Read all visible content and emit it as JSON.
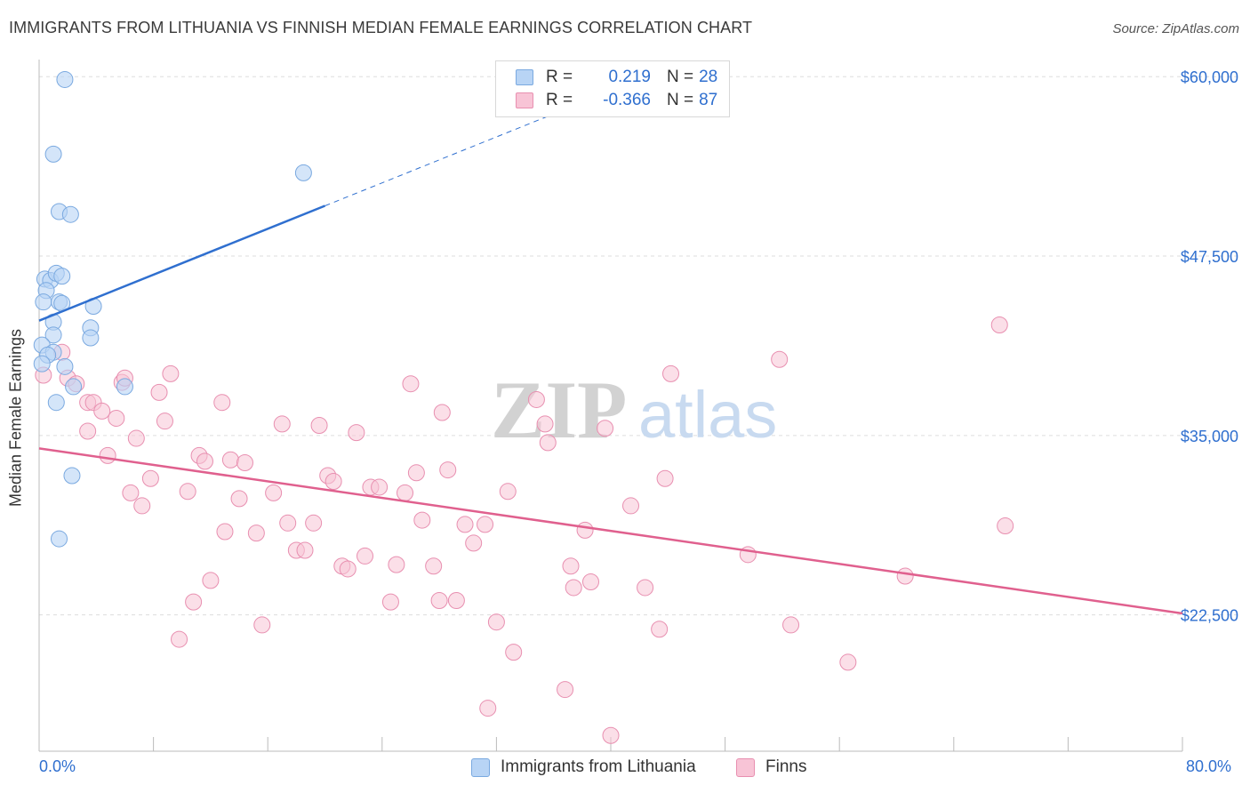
{
  "title": "IMMIGRANTS FROM LITHUANIA VS FINNISH MEDIAN FEMALE EARNINGS CORRELATION CHART",
  "source": "Source: ZipAtlas.com",
  "watermark": {
    "zip": "ZIP",
    "atlas": "atlas"
  },
  "legend": {
    "series1": {
      "r_label": "R =",
      "r_value": "0.219",
      "n_label": "N =",
      "n_value": "28"
    },
    "series2": {
      "r_label": "R =",
      "r_value": "-0.366",
      "n_label": "N =",
      "n_value": "87"
    }
  },
  "x_axis": {
    "min_label": "0.0%",
    "max_label": "80.0%"
  },
  "y_axis_title": "Median Female Earnings",
  "colors": {
    "blue_fill": "#b8d4f5",
    "blue_stroke": "#7aa9e0",
    "blue_line": "#2f6fcf",
    "pink_fill": "#f8c4d6",
    "pink_stroke": "#e88fb0",
    "pink_line": "#e0608e",
    "tick_label": "#2f6fcf",
    "grid": "#dddddd"
  },
  "chart_data": {
    "type": "scatter",
    "title": "IMMIGRANTS FROM LITHUANIA VS FINNISH MEDIAN FEMALE EARNINGS CORRELATION CHART",
    "xlabel": "",
    "ylabel": "Median Female Earnings",
    "xlim": [
      0,
      80
    ],
    "ylim": [
      13000,
      61500
    ],
    "y_ticks": [
      22500,
      35000,
      47500,
      60000
    ],
    "y_tick_labels": [
      "$22,500",
      "$35,000",
      "$47,500",
      "$60,000"
    ],
    "x_tick_labels": [
      "0.0%",
      "80.0%"
    ],
    "grid": true,
    "legend_position": "top-center",
    "series": [
      {
        "name": "Immigrants from Lithuania",
        "r": 0.219,
        "n": 28,
        "trend": {
          "x": [
            0,
            20
          ],
          "y": [
            43000,
            51000
          ],
          "dashed_extension_to": [
            37,
            57800
          ]
        },
        "points": [
          [
            1.8,
            59800
          ],
          [
            1.0,
            54600
          ],
          [
            1.4,
            50600
          ],
          [
            2.2,
            50400
          ],
          [
            18.5,
            53300
          ],
          [
            0.4,
            45900
          ],
          [
            0.8,
            45800
          ],
          [
            1.2,
            46300
          ],
          [
            1.6,
            46100
          ],
          [
            0.5,
            45100
          ],
          [
            0.3,
            44300
          ],
          [
            1.4,
            44300
          ],
          [
            1.6,
            44200
          ],
          [
            3.8,
            44000
          ],
          [
            1.0,
            42900
          ],
          [
            3.6,
            42500
          ],
          [
            1.0,
            42000
          ],
          [
            3.6,
            41800
          ],
          [
            0.2,
            41300
          ],
          [
            1.0,
            40800
          ],
          [
            0.6,
            40600
          ],
          [
            1.8,
            39800
          ],
          [
            0.2,
            40000
          ],
          [
            2.4,
            38400
          ],
          [
            6.0,
            38400
          ],
          [
            1.2,
            37300
          ],
          [
            2.3,
            32200
          ],
          [
            1.4,
            27800
          ]
        ]
      },
      {
        "name": "Finns",
        "r": -0.366,
        "n": 87,
        "trend": {
          "x": [
            0,
            80
          ],
          "y": [
            34100,
            22600
          ]
        },
        "points": [
          [
            0.3,
            39200
          ],
          [
            1.6,
            40800
          ],
          [
            2.0,
            39000
          ],
          [
            2.6,
            38600
          ],
          [
            3.4,
            35300
          ],
          [
            3.4,
            37300
          ],
          [
            3.8,
            37300
          ],
          [
            4.4,
            36700
          ],
          [
            4.8,
            33600
          ],
          [
            5.4,
            36200
          ],
          [
            5.8,
            38700
          ],
          [
            6.0,
            39000
          ],
          [
            6.4,
            31000
          ],
          [
            6.8,
            34800
          ],
          [
            7.2,
            30100
          ],
          [
            7.8,
            32000
          ],
          [
            8.4,
            38000
          ],
          [
            8.8,
            36000
          ],
          [
            9.2,
            39300
          ],
          [
            9.8,
            20800
          ],
          [
            10.4,
            31100
          ],
          [
            10.8,
            23400
          ],
          [
            11.2,
            33600
          ],
          [
            11.6,
            33200
          ],
          [
            12.0,
            24900
          ],
          [
            12.8,
            37300
          ],
          [
            13.0,
            28300
          ],
          [
            13.4,
            33300
          ],
          [
            14.0,
            30600
          ],
          [
            14.4,
            33100
          ],
          [
            15.2,
            28200
          ],
          [
            15.6,
            21800
          ],
          [
            16.4,
            31000
          ],
          [
            17.0,
            35800
          ],
          [
            17.4,
            28900
          ],
          [
            18.0,
            27000
          ],
          [
            18.6,
            27000
          ],
          [
            19.2,
            28900
          ],
          [
            19.6,
            35700
          ],
          [
            20.2,
            32200
          ],
          [
            20.6,
            31800
          ],
          [
            21.2,
            25900
          ],
          [
            21.6,
            25700
          ],
          [
            22.2,
            35200
          ],
          [
            22.8,
            26600
          ],
          [
            23.2,
            31400
          ],
          [
            23.8,
            31400
          ],
          [
            24.6,
            23400
          ],
          [
            25.0,
            26000
          ],
          [
            25.6,
            31000
          ],
          [
            26.0,
            38600
          ],
          [
            26.4,
            32400
          ],
          [
            26.8,
            29100
          ],
          [
            27.6,
            25900
          ],
          [
            28.0,
            23500
          ],
          [
            28.2,
            36600
          ],
          [
            28.6,
            32600
          ],
          [
            29.2,
            23500
          ],
          [
            29.8,
            28800
          ],
          [
            30.4,
            27500
          ],
          [
            31.2,
            28800
          ],
          [
            31.4,
            16000
          ],
          [
            32.0,
            22000
          ],
          [
            32.8,
            31100
          ],
          [
            33.2,
            19900
          ],
          [
            34.8,
            37500
          ],
          [
            35.4,
            35800
          ],
          [
            35.6,
            34500
          ],
          [
            36.8,
            17300
          ],
          [
            37.2,
            25900
          ],
          [
            37.4,
            24400
          ],
          [
            38.2,
            28400
          ],
          [
            38.6,
            24800
          ],
          [
            39.6,
            35500
          ],
          [
            40.0,
            14100
          ],
          [
            41.4,
            30100
          ],
          [
            42.4,
            24400
          ],
          [
            43.4,
            21500
          ],
          [
            43.8,
            32000
          ],
          [
            44.2,
            39300
          ],
          [
            49.6,
            26700
          ],
          [
            51.8,
            40300
          ],
          [
            52.6,
            21800
          ],
          [
            56.6,
            19200
          ],
          [
            60.6,
            25200
          ],
          [
            67.2,
            42700
          ],
          [
            67.6,
            28700
          ]
        ]
      }
    ]
  }
}
